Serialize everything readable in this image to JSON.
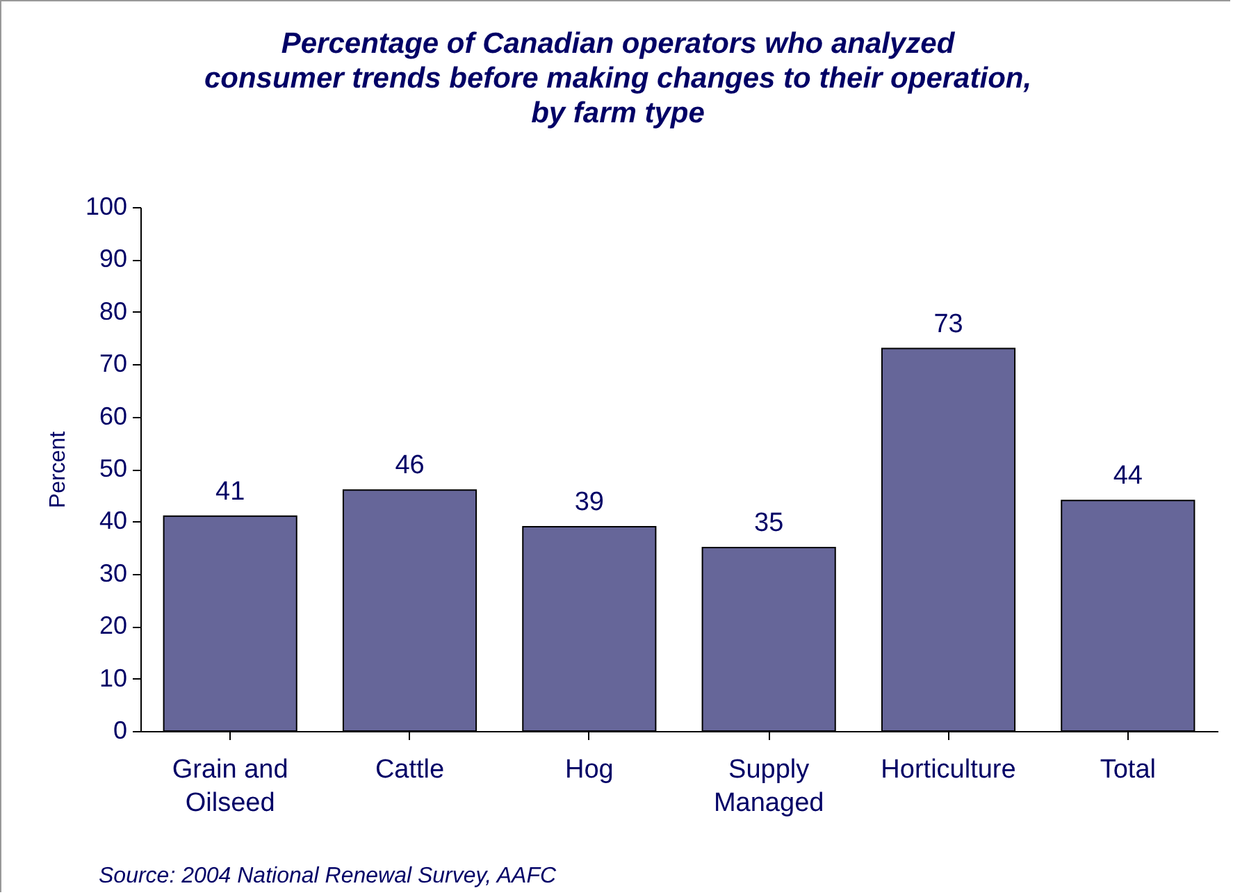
{
  "chart_data": {
    "type": "bar",
    "title": "Percentage of Canadian operators who analyzed\nconsumer trends before making changes to their operation,\nby farm type",
    "ylabel": "Percent",
    "categories": [
      "Grain and Oilseed",
      "Cattle",
      "Hog",
      "Supply Managed",
      "Horticulture",
      "Total"
    ],
    "values": [
      41,
      46,
      39,
      35,
      73,
      44
    ],
    "color": "#666699",
    "ylim": [
      0,
      100
    ],
    "yticks": [
      0,
      10,
      20,
      30,
      40,
      50,
      60,
      70,
      80,
      90,
      100
    ],
    "data_labels": true,
    "grid": false,
    "annotations": [
      "Source: 2004 National Renewal Survey, AAFC"
    ]
  }
}
